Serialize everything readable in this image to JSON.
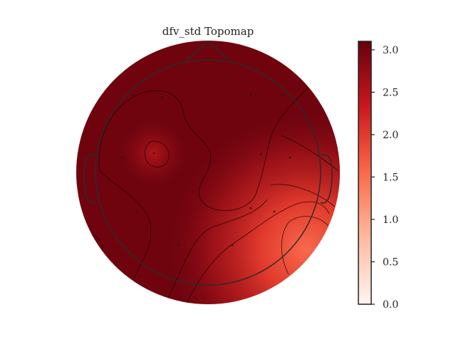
{
  "chart_data": {
    "type": "heatmap",
    "title": "dfv_std Topomap",
    "colormap": "Reds",
    "colorbar": {
      "range": [
        0.0,
        3.1
      ],
      "ticks": [
        0.0,
        0.5,
        1.0,
        1.5,
        2.0,
        2.5,
        3.0
      ],
      "tick_labels": [
        "0.0",
        "0.5",
        "1.0",
        "1.5",
        "2.0",
        "2.5",
        "3.0"
      ],
      "colors": [
        "#fff5f0",
        "#fcbba1",
        "#fb6a4a",
        "#cb181d",
        "#67000d"
      ]
    },
    "contour_lines": true,
    "sensor_markers": true
  }
}
